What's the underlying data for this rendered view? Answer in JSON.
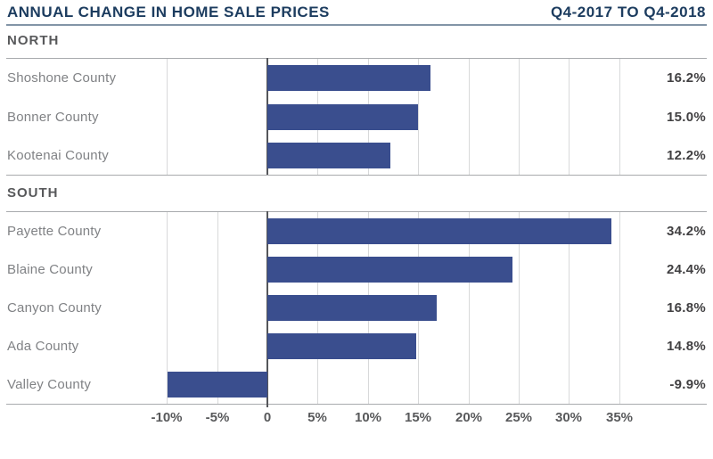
{
  "header": {
    "title": "ANNUAL CHANGE IN HOME SALE PRICES",
    "period": "Q4-2017 TO Q4-2018"
  },
  "colors": {
    "title_navy": "#1c3c5f",
    "bar_blue": "#3a4e8e",
    "section_gray": "#58595b",
    "category_gray": "#808285",
    "value_dark": "#414042",
    "gridline_light": "#d8d9da",
    "border_gray": "#a8aaad",
    "zero_line_dark": "#55565a"
  },
  "chart_data": {
    "type": "bar",
    "orientation": "horizontal",
    "title": "ANNUAL CHANGE IN HOME SALE PRICES",
    "period": "Q4-2017 TO Q4-2018",
    "unit": "%",
    "xlim": [
      -12.8,
      41.6
    ],
    "grid": true,
    "x_ticks": [
      {
        "value": -10,
        "label": "-10%"
      },
      {
        "value": -5,
        "label": "-5%"
      },
      {
        "value": 0,
        "label": "0"
      },
      {
        "value": 5,
        "label": "5%"
      },
      {
        "value": 10,
        "label": "10%"
      },
      {
        "value": 15,
        "label": "15%"
      },
      {
        "value": 20,
        "label": "20%"
      },
      {
        "value": 25,
        "label": "25%"
      },
      {
        "value": 30,
        "label": "30%"
      },
      {
        "value": 35,
        "label": "35%"
      }
    ],
    "sections": [
      {
        "label": "NORTH",
        "categories": [
          "Shoshone County",
          "Bonner County",
          "Kootenai County"
        ],
        "values": [
          16.2,
          15.0,
          12.2
        ],
        "value_labels": [
          "16.2%",
          "15.0%",
          "12.2%"
        ],
        "gridlines": [
          -10,
          5,
          10,
          15,
          20,
          25,
          30,
          35
        ]
      },
      {
        "label": "SOUTH",
        "categories": [
          "Payette County",
          "Blaine County",
          "Canyon County",
          "Ada County",
          "Valley County"
        ],
        "values": [
          34.2,
          24.4,
          16.8,
          14.8,
          -9.9
        ],
        "value_labels": [
          "34.2%",
          "24.4%",
          "16.8%",
          "14.8%",
          "-9.9%"
        ],
        "gridlines": [
          -10,
          -5,
          5,
          10,
          15,
          20,
          25,
          30,
          35
        ]
      }
    ]
  }
}
